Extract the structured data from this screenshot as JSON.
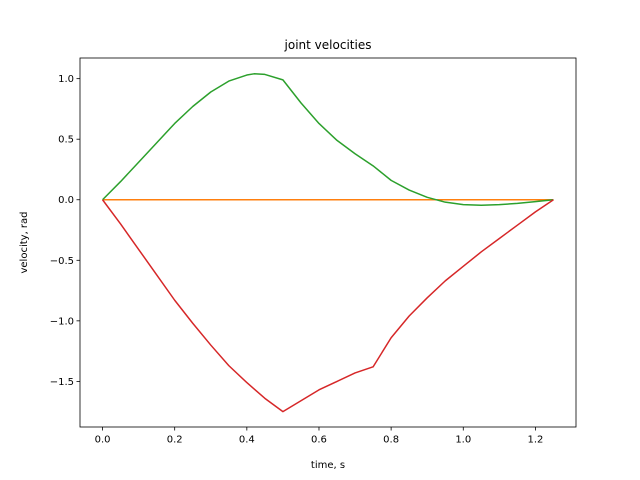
{
  "chart_data": {
    "type": "line",
    "title": "joint velocities",
    "xlabel": "time, s",
    "ylabel": "velocity, rad",
    "xlim": [
      -0.0625,
      1.3125
    ],
    "ylim": [
      -1.8767,
      1.1706
    ],
    "grid": false,
    "legend": "none",
    "xticks": [
      0.0,
      0.2,
      0.4,
      0.6,
      0.8,
      1.0,
      1.2
    ],
    "xtick_labels": [
      "0.0",
      "0.2",
      "0.4",
      "0.6",
      "0.8",
      "1.0",
      "1.2"
    ],
    "yticks": [
      -1.5,
      -1.0,
      -0.5,
      0.0,
      0.5,
      1.0
    ],
    "ytick_labels": [
      "−1.5",
      "−1.0",
      "−0.5",
      "0.0",
      "0.5",
      "1.0"
    ],
    "series": [
      {
        "color": "#1f77b4",
        "x": [
          0.0,
          1.25
        ],
        "y": [
          0.0,
          0.0
        ]
      },
      {
        "color": "#ff7f0e",
        "x": [
          0.0,
          1.25
        ],
        "y": [
          0.0,
          0.0
        ]
      },
      {
        "color": "#2ca02c",
        "x": [
          0.0,
          0.05,
          0.1,
          0.15,
          0.2,
          0.25,
          0.3,
          0.35,
          0.4,
          0.42,
          0.45,
          0.5,
          0.55,
          0.6,
          0.65,
          0.7,
          0.75,
          0.8,
          0.85,
          0.9,
          0.95,
          1.0,
          1.05,
          1.1,
          1.15,
          1.2,
          1.25
        ],
        "y": [
          0.0,
          0.15,
          0.31,
          0.47,
          0.63,
          0.77,
          0.89,
          0.98,
          1.03,
          1.04,
          1.035,
          0.99,
          0.8,
          0.63,
          0.49,
          0.38,
          0.28,
          0.16,
          0.08,
          0.02,
          -0.02,
          -0.04,
          -0.045,
          -0.04,
          -0.03,
          -0.015,
          0.0
        ]
      },
      {
        "color": "#d62728",
        "x": [
          0.0,
          0.05,
          0.1,
          0.15,
          0.2,
          0.25,
          0.3,
          0.35,
          0.4,
          0.45,
          0.5,
          0.55,
          0.6,
          0.65,
          0.7,
          0.75,
          0.8,
          0.85,
          0.9,
          0.95,
          1.0,
          1.05,
          1.1,
          1.15,
          1.2,
          1.25
        ],
        "y": [
          0.0,
          -0.2,
          -0.41,
          -0.62,
          -0.83,
          -1.02,
          -1.2,
          -1.37,
          -1.51,
          -1.64,
          -1.75,
          -1.66,
          -1.57,
          -1.5,
          -1.43,
          -1.38,
          -1.14,
          -0.96,
          -0.81,
          -0.67,
          -0.55,
          -0.43,
          -0.32,
          -0.21,
          -0.1,
          0.0
        ]
      }
    ]
  }
}
